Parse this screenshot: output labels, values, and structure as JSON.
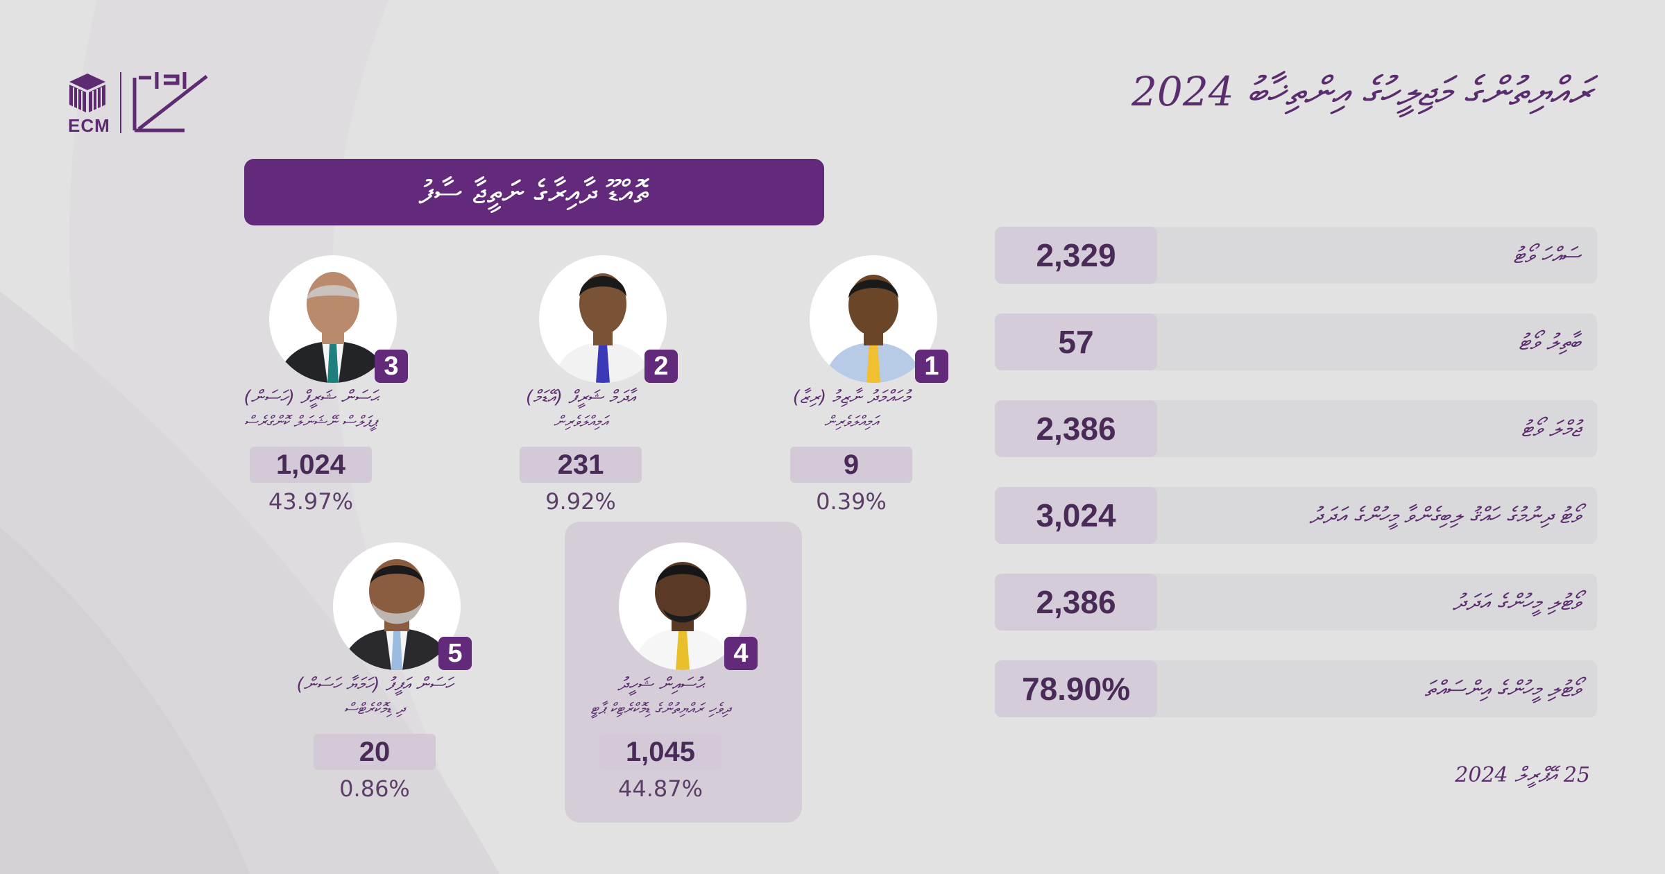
{
  "header": {
    "title": "ރައްޔިތުންގެ މަޖިލީހުގެ އިންތިޚާބު 2024",
    "date": "25 އޭޕްރީލް 2024"
  },
  "logo": {
    "text": "ECM"
  },
  "banner": {
    "text": "ތޮއްޑޫ ދާއިރާގެ ނަތީޖާ ސާފު"
  },
  "candidates": [
    {
      "number": "1",
      "name": "މުހައްމަދު ނާޒިމު (ރިޒާ)",
      "party": "އަމިއްލަވެރިން",
      "votes": "9",
      "percent": "0.39%"
    },
    {
      "number": "2",
      "name": "އާދަމް ޝަރީފް (އޭޑަމް)",
      "party": "އަމިއްލަވެރިން",
      "votes": "231",
      "percent": "9.92%"
    },
    {
      "number": "3",
      "name": "ޙަސަން ޝަރީފް (ހަސަން)",
      "party": "ޕީޕަލްސް ނޭޝަނަލް ކޮންގްރެސް",
      "votes": "1,024",
      "percent": "43.97%"
    },
    {
      "number": "4",
      "name": "ޙުސައިން ޝަހީދު",
      "party": "ދިވެހި ރައްޔިތުންގެ ޑިމޮކްރެޓިކް ޕާޓީ",
      "votes": "1,045",
      "percent": "44.87%"
    },
    {
      "number": "5",
      "name": "ހަސަން އަފީފު (ހަމަޔާ ހަސަން)",
      "party": "ދި ޑިމޮކްރެޓްސް",
      "votes": "20",
      "percent": "0.86%"
    }
  ],
  "stats": [
    {
      "label": "ސައްހަ ވޯޓު",
      "value": "2,329"
    },
    {
      "label": "ބާތިލު ވޯޓު",
      "value": "57"
    },
    {
      "label": "ޖުމްލަ ވޯޓު",
      "value": "2,386"
    },
    {
      "label": "ވޯޓު ދިނުމުގެ ހައްޤު ލިބިގެންވާ މީހުންގެ އަދަދު",
      "value": "3,024"
    },
    {
      "label": "ވޯޓުލި މީހުންގެ އަދަދު",
      "value": "2,386"
    },
    {
      "label": "ވޯޓުލި މީހުންގެ އިންސައްތަ",
      "value": "78.90%"
    }
  ],
  "colors": {
    "accent": "#63297a",
    "background": "#e3e2e3",
    "value_box": "#d5ccd9"
  }
}
